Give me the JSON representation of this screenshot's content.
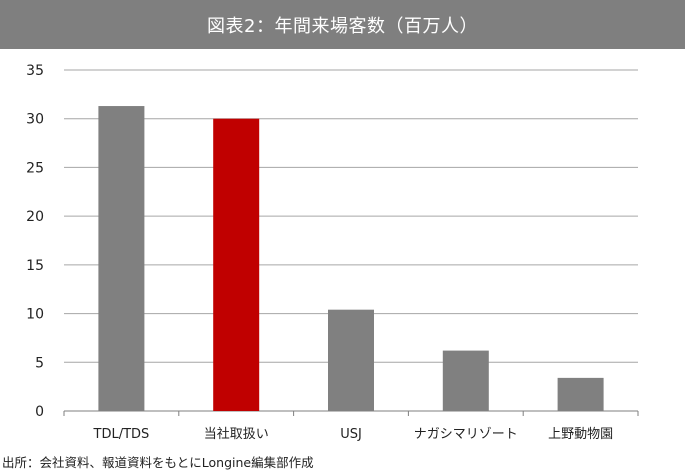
{
  "header": {
    "title": "図表2：年間来場客数（百万人）"
  },
  "footer": {
    "source": "出所：会社資料、報道資料をもとにLongine編集部作成"
  },
  "colors": {
    "title_bar": "#7f7f7f",
    "bar_default": "#808080",
    "bar_highlight": "#c00000",
    "gridline": "#a6a6a6"
  },
  "chart_data": {
    "type": "bar",
    "title": "図表2：年間来場客数（百万人）",
    "categories": [
      "TDL/TDS",
      "当社取扱い",
      "USJ",
      "ナガシマリゾート",
      "上野動物園"
    ],
    "values": [
      31.3,
      30.0,
      10.4,
      6.2,
      3.4
    ],
    "highlight_index": 1,
    "ylim": [
      0,
      35
    ],
    "yticks": [
      0,
      5,
      10,
      15,
      20,
      25,
      30,
      35
    ],
    "xlabel": "",
    "ylabel": "",
    "grid": true,
    "legend": "none"
  }
}
